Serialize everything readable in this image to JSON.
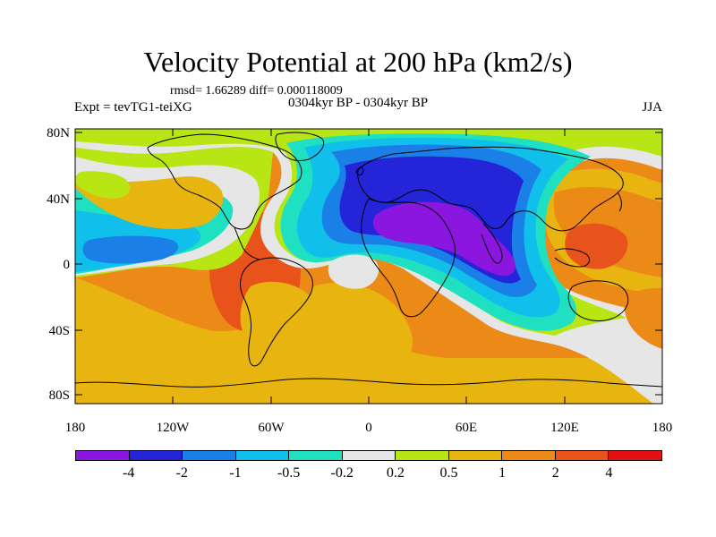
{
  "header": {
    "title": "Velocity Potential at 200 hPa (km2/s)",
    "stats": "rmsd= 1.66289 diff= 0.000118009",
    "experiment": "Expt = tevTG1-teiXG",
    "period": "0304kyr BP - 0304kyr BP",
    "season": "JJA"
  },
  "axes": {
    "lat_ticks": [
      "80N",
      "40N",
      "0",
      "40S",
      "80S"
    ],
    "lon_ticks": [
      "180",
      "120W",
      "60W",
      "0",
      "60E",
      "120E",
      "180"
    ]
  },
  "colorbar": {
    "labels": [
      "-4",
      "-2",
      "-1",
      "-0.5",
      "-0.2",
      "0.2",
      "0.5",
      "1",
      "2",
      "4"
    ],
    "colors": [
      "#8a16e0",
      "#2424d9",
      "#1a7fe6",
      "#10c0ea",
      "#1fe0c0",
      "#e6e6e6",
      "#b8e614",
      "#e8b510",
      "#eb8a17",
      "#e8521b",
      "#e41111"
    ]
  },
  "map_colors": {
    "ocean": "#eb8a17",
    "coast": "#000000",
    "light_orange": "#e8b510"
  }
}
